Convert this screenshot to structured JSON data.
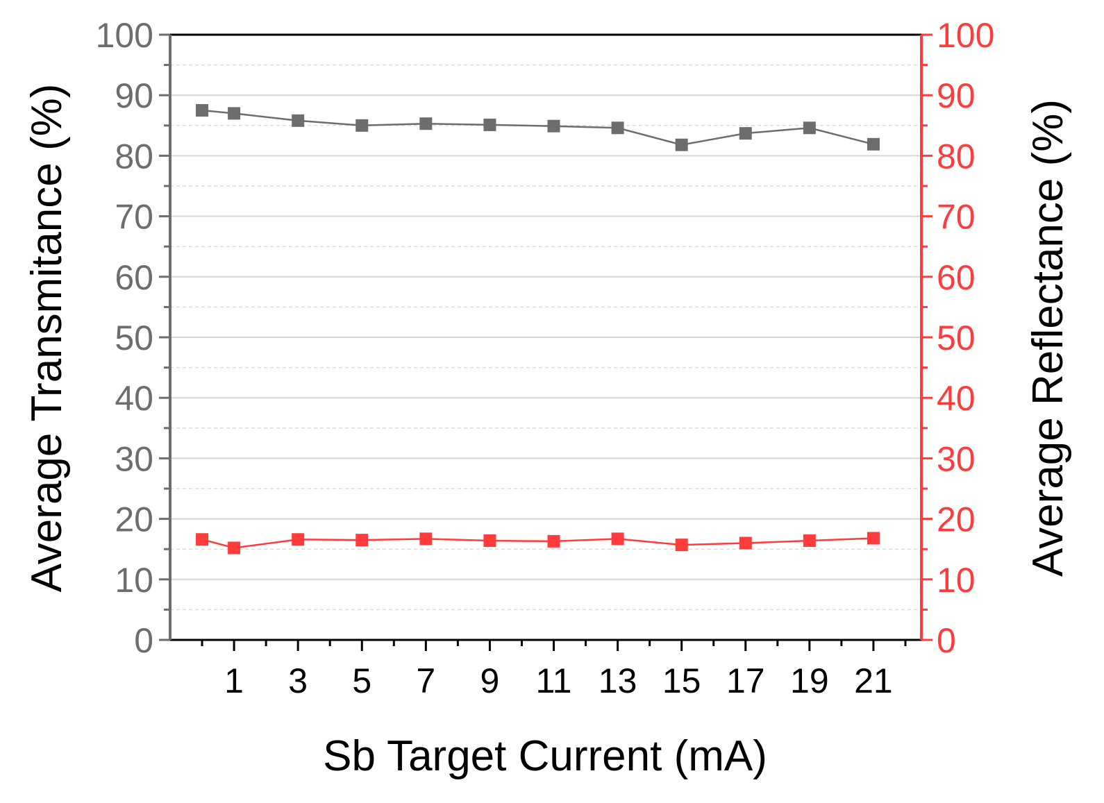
{
  "chart_data": {
    "type": "line",
    "xlabel": "Sb Target Current (mA)",
    "ylabel_left": "Average Transmitance (%)",
    "ylabel_right": "Average Reflectance (%)",
    "x": [
      0,
      1,
      3,
      5,
      7,
      9,
      11,
      13,
      15,
      17,
      19,
      21
    ],
    "x_ticks": [
      1,
      3,
      5,
      7,
      9,
      11,
      13,
      15,
      17,
      19,
      21
    ],
    "xlim": [
      -1,
      22.5
    ],
    "ylim_left": [
      0,
      100
    ],
    "ylim_right": [
      0,
      100
    ],
    "y_ticks": [
      0,
      10,
      20,
      30,
      40,
      50,
      60,
      70,
      80,
      90,
      100
    ],
    "grid": true,
    "series": [
      {
        "axis": "left",
        "color": "#6d6d6d",
        "marker": "square",
        "values": [
          87.5,
          87.0,
          85.8,
          85.0,
          85.3,
          85.1,
          84.9,
          84.6,
          81.8,
          83.7,
          84.6,
          81.9
        ]
      },
      {
        "axis": "right",
        "color": "#ff3b3b",
        "marker": "square",
        "values": [
          16.6,
          15.2,
          16.6,
          16.5,
          16.7,
          16.4,
          16.3,
          16.7,
          15.7,
          16.0,
          16.4,
          16.8
        ]
      }
    ]
  }
}
